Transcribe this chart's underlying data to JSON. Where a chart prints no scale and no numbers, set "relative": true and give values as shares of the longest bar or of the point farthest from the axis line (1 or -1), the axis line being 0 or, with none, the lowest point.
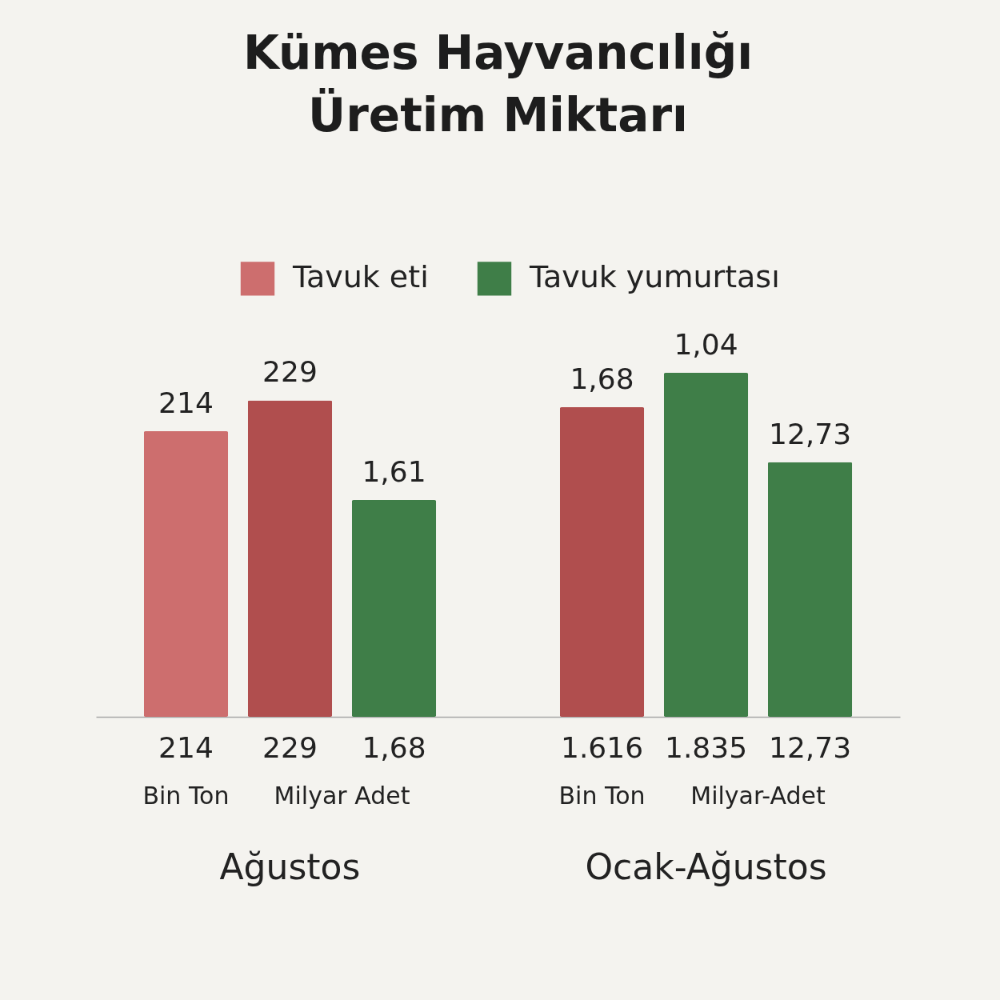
{
  "chart_data": {
    "type": "bar",
    "title": "Kümes Hayvancılığı Üretim Miktarı",
    "relative": true,
    "categories": [
      "214",
      "229",
      "1,68",
      null,
      "1.616",
      "1.835",
      "12,73"
    ],
    "series": [
      {
        "name": "Tavuk eti",
        "color": "#cd6e6e",
        "colors": [
          "#cd6e6e",
          "#b04e4e",
          null,
          null,
          "#b04e4e",
          null,
          null
        ],
        "values": [
          0.83,
          0.92,
          null,
          null,
          0.9,
          null,
          null
        ]
      },
      {
        "name": "Tavuk yumurtası",
        "color": "#3f7e48",
        "colors": [
          null,
          null,
          "#3f7e48",
          null,
          null,
          "#3f7e48",
          "#3f7e48"
        ],
        "values": [
          null,
          null,
          0.63,
          null,
          null,
          1,
          0.74
        ]
      }
    ],
    "annotations": [
      {
        "text": "214",
        "x": "214",
        "y": 0.83
      },
      {
        "text": "229",
        "x": "229",
        "y": 0.92
      },
      {
        "text": "1,61",
        "x": "1,68",
        "y": 0.63
      },
      {
        "text": "1,68",
        "x": "1.616",
        "y": 0.9
      },
      {
        "text": "1,04",
        "x": "1.835",
        "y": 1
      },
      {
        "text": "12,73",
        "x": "12,73",
        "y": 0.74
      },
      "Bin Ton",
      "Milyar Adet",
      "Bin Ton",
      "Milyar-Adet",
      "Ağustos",
      "Ocak-Ağustos"
    ],
    "legend": "top"
  }
}
